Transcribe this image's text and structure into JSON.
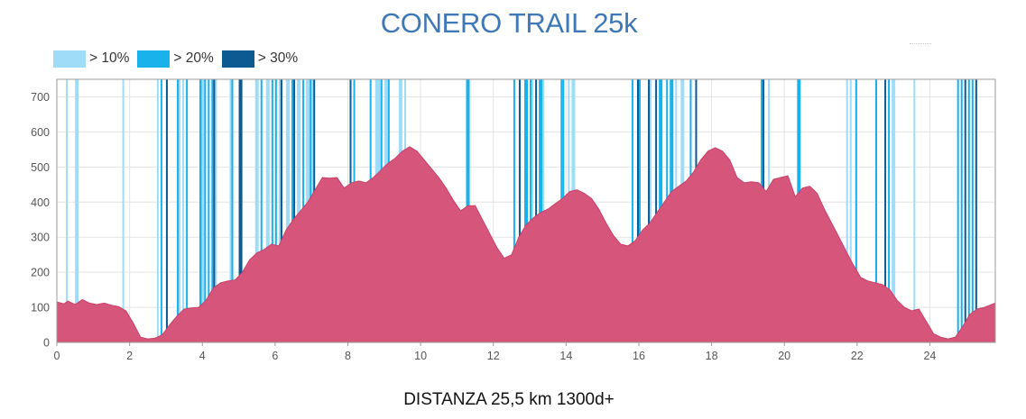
{
  "chart_data": {
    "type": "area",
    "title": "CONERO TRAIL 25k",
    "caption": "DISTANZA 25,5 km 1300d+",
    "xlim": [
      0,
      25.8
    ],
    "ylim": [
      0,
      750
    ],
    "x_ticks": [
      "0",
      "2",
      "4",
      "6",
      "8",
      "10",
      "12",
      "14",
      "16",
      "18",
      "20",
      "22",
      "24"
    ],
    "y_ticks": [
      "0",
      "100",
      "200",
      "300",
      "400",
      "500",
      "600",
      "700"
    ],
    "grid": true,
    "legend_position": "top-left",
    "area_color": "#d6557a",
    "legend": [
      {
        "label": "> 10%",
        "color": "#9fdcf7"
      },
      {
        "label": "> 20%",
        "color": "#19b2ea"
      },
      {
        "label": "> 30%",
        "color": "#0d5a93"
      }
    ],
    "series": [
      {
        "x": [
          0,
          0.2,
          0.3,
          0.5,
          0.7,
          0.9,
          1.1,
          1.3,
          1.5,
          1.7,
          1.9,
          2.1,
          2.3,
          2.5,
          2.7,
          2.9,
          3.1,
          3.3,
          3.5,
          3.7,
          3.9,
          4.1,
          4.3,
          4.5,
          4.7,
          4.9,
          5.1,
          5.3,
          5.5,
          5.7,
          5.9,
          6.1,
          6.3,
          6.5,
          6.7,
          6.9,
          7.1,
          7.3,
          7.5,
          7.7,
          7.9,
          8.1,
          8.3,
          8.5,
          8.7,
          8.9,
          9.1,
          9.3,
          9.5,
          9.7,
          9.9,
          10.1,
          10.3,
          10.5,
          10.7,
          10.9,
          11.1,
          11.3,
          11.5,
          11.7,
          11.9,
          12.1,
          12.3,
          12.5,
          12.7,
          12.9,
          13.1,
          13.3,
          13.5,
          13.7,
          13.9,
          14.1,
          14.3,
          14.5,
          14.7,
          14.9,
          15.1,
          15.3,
          15.5,
          15.7,
          15.9,
          16.1,
          16.3,
          16.5,
          16.7,
          16.9,
          17.1,
          17.3,
          17.5,
          17.7,
          17.9,
          18.1,
          18.3,
          18.5,
          18.7,
          18.9,
          19.1,
          19.3,
          19.5,
          19.7,
          19.9,
          20.1,
          20.3,
          20.5,
          20.7,
          20.9,
          21.1,
          21.3,
          21.5,
          21.7,
          21.9,
          22.1,
          22.3,
          22.5,
          22.7,
          22.9,
          23.1,
          23.3,
          23.5,
          23.7,
          23.9,
          24.1,
          24.3,
          24.5,
          24.7,
          24.9,
          25.1,
          25.3,
          25.5,
          25.8
        ],
        "y": [
          115,
          110,
          118,
          108,
          122,
          112,
          108,
          112,
          106,
          102,
          90,
          55,
          15,
          10,
          12,
          22,
          50,
          75,
          95,
          98,
          100,
          120,
          155,
          170,
          175,
          178,
          200,
          235,
          255,
          265,
          280,
          275,
          320,
          350,
          375,
          400,
          435,
          470,
          468,
          470,
          440,
          455,
          460,
          455,
          470,
          490,
          510,
          525,
          545,
          558,
          545,
          520,
          495,
          470,
          440,
          405,
          375,
          390,
          390,
          350,
          310,
          270,
          240,
          250,
          300,
          335,
          355,
          370,
          380,
          395,
          410,
          430,
          435,
          425,
          410,
          380,
          340,
          305,
          280,
          275,
          290,
          320,
          340,
          370,
          400,
          430,
          445,
          460,
          485,
          520,
          545,
          555,
          545,
          520,
          470,
          455,
          458,
          455,
          430,
          465,
          470,
          475,
          415,
          440,
          445,
          425,
          380,
          340,
          300,
          260,
          220,
          185,
          175,
          170,
          165,
          150,
          120,
          100,
          90,
          95,
          60,
          25,
          15,
          10,
          15,
          45,
          80,
          95,
          100,
          112
        ]
      }
    ],
    "slope_bands": [
      {
        "category": "> 10%",
        "ranges": [
          [
            0.25,
            0.3
          ],
          [
            0.5,
            0.6
          ],
          [
            1.8,
            1.85
          ],
          [
            2.75,
            2.8
          ],
          [
            3.35,
            3.4
          ],
          [
            3.45,
            3.5
          ],
          [
            3.98,
            4.05
          ],
          [
            4.35,
            4.4
          ],
          [
            4.75,
            4.8
          ],
          [
            5.45,
            5.55
          ],
          [
            5.75,
            5.85
          ],
          [
            6.1,
            6.2
          ],
          [
            6.3,
            6.4
          ],
          [
            6.6,
            6.7
          ],
          [
            6.85,
            6.95
          ],
          [
            7.0,
            7.05
          ],
          [
            8.75,
            8.9
          ],
          [
            9.0,
            9.1
          ],
          [
            9.4,
            9.5
          ],
          [
            9.55,
            9.6
          ],
          [
            13.05,
            13.1
          ],
          [
            13.35,
            13.4
          ],
          [
            14.05,
            14.1
          ],
          [
            14.15,
            14.25
          ],
          [
            16.3,
            16.35
          ],
          [
            17.0,
            17.05
          ],
          [
            17.15,
            17.25
          ],
          [
            19.55,
            19.6
          ],
          [
            21.7,
            21.75
          ],
          [
            21.8,
            21.85
          ],
          [
            22.95,
            23.05
          ],
          [
            23.55,
            23.6
          ]
        ]
      },
      {
        "category": "> 20%",
        "ranges": [
          [
            2.85,
            2.9
          ],
          [
            3.3,
            3.35
          ],
          [
            3.55,
            3.6
          ],
          [
            3.92,
            3.98
          ],
          [
            4.05,
            4.1
          ],
          [
            4.15,
            4.2
          ],
          [
            4.25,
            4.3
          ],
          [
            4.8,
            4.85
          ],
          [
            5.6,
            5.65
          ],
          [
            5.9,
            5.95
          ],
          [
            6.0,
            6.05
          ],
          [
            6.45,
            6.5
          ],
          [
            6.75,
            6.8
          ],
          [
            6.95,
            7.0
          ],
          [
            8.15,
            8.2
          ],
          [
            8.6,
            8.65
          ],
          [
            8.9,
            8.95
          ],
          [
            9.1,
            9.15
          ],
          [
            11.25,
            11.35
          ],
          [
            12.55,
            12.6
          ],
          [
            12.85,
            12.95
          ],
          [
            13.0,
            13.05
          ],
          [
            13.25,
            13.35
          ],
          [
            13.85,
            13.9
          ],
          [
            13.9,
            13.95
          ],
          [
            15.8,
            15.85
          ],
          [
            16.0,
            16.05
          ],
          [
            16.55,
            16.65
          ],
          [
            16.75,
            16.8
          ],
          [
            16.85,
            16.95
          ],
          [
            17.4,
            17.45
          ],
          [
            19.35,
            19.45
          ],
          [
            20.35,
            20.45
          ],
          [
            21.95,
            22.0
          ],
          [
            22.5,
            22.55
          ],
          [
            22.85,
            22.9
          ],
          [
            24.75,
            24.8
          ],
          [
            24.85,
            24.9
          ],
          [
            25.05,
            25.1
          ],
          [
            25.15,
            25.2
          ]
        ]
      },
      {
        "category": "> 30%",
        "ranges": [
          [
            3.0,
            3.05
          ],
          [
            4.3,
            4.35
          ],
          [
            5.0,
            5.1
          ],
          [
            6.15,
            6.2
          ],
          [
            6.5,
            6.55
          ],
          [
            7.05,
            7.1
          ],
          [
            8.05,
            8.1
          ],
          [
            12.7,
            12.75
          ],
          [
            13.15,
            13.2
          ],
          [
            15.95,
            16.0
          ],
          [
            16.25,
            16.3
          ],
          [
            16.45,
            16.5
          ],
          [
            17.55,
            17.6
          ],
          [
            19.4,
            19.45
          ],
          [
            22.75,
            22.8
          ],
          [
            24.95,
            25.0
          ],
          [
            25.25,
            25.3
          ]
        ]
      }
    ]
  }
}
